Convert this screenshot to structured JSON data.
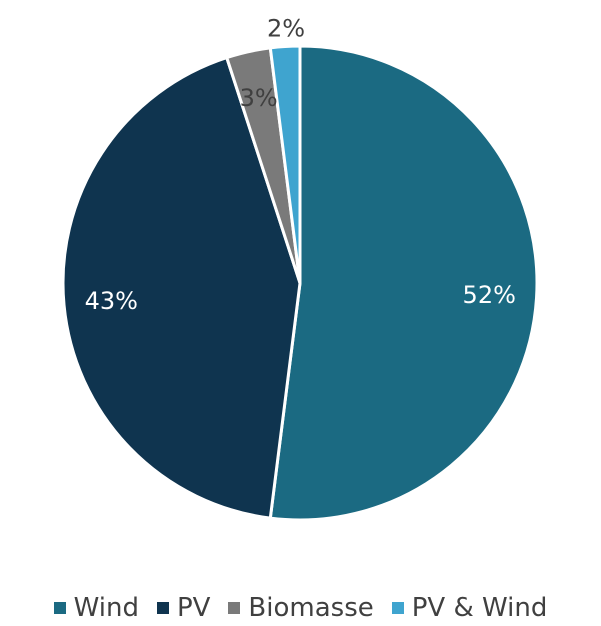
{
  "chart_data": {
    "type": "pie",
    "categories": [
      "Wind",
      "PV",
      "Biomasse",
      "PV & Wind"
    ],
    "values": [
      52,
      43,
      3,
      2
    ],
    "data_labels": [
      "52%",
      "43%",
      "3%",
      "2%"
    ],
    "colors": [
      "#1B6A82",
      "#0F344F",
      "#7A7A7A",
      "#3FA4CF"
    ],
    "label_colors": [
      "#ffffff",
      "#ffffff",
      "#404040",
      "#404040"
    ],
    "start_angle_deg": 0,
    "direction": "clockwise",
    "legend_position": "bottom",
    "title": ""
  }
}
